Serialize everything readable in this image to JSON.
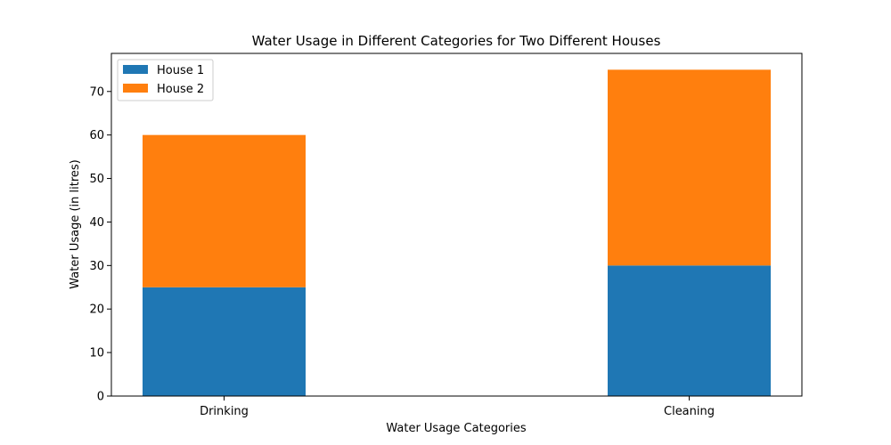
{
  "chart_data": {
    "type": "bar",
    "stacked": true,
    "title": "Water Usage in Different Categories for Two Different Houses",
    "xlabel": "Water Usage Categories",
    "ylabel": "Water Usage (in litres)",
    "categories": [
      "Drinking",
      "Cleaning"
    ],
    "series": [
      {
        "name": "House 1",
        "values": [
          25,
          30
        ],
        "color": "#1f77b4"
      },
      {
        "name": "House 2",
        "values": [
          35,
          45
        ],
        "color": "#ff7f0e"
      }
    ],
    "ylim": [
      0,
      78.75
    ],
    "yticks": [
      0,
      10,
      20,
      30,
      40,
      50,
      60,
      70
    ],
    "grid": false,
    "legend_position": "top-left"
  }
}
